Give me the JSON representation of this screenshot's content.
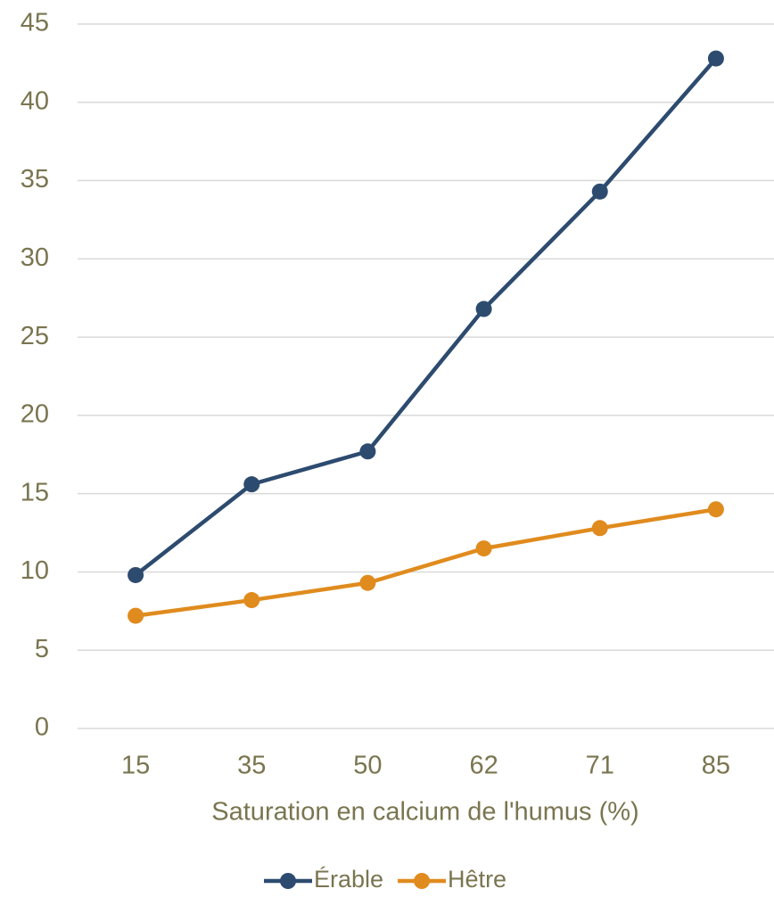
{
  "chart_data": {
    "type": "line",
    "x_label": "Saturation en calcium de l'humus (%)",
    "categories": [
      "15",
      "35",
      "50",
      "62",
      "71",
      "85"
    ],
    "series": [
      {
        "name": "Érable",
        "color": "#2d4b6f",
        "values": [
          9.8,
          15.6,
          17.7,
          26.8,
          34.3,
          42.8
        ]
      },
      {
        "name": "Hêtre",
        "color": "#e08b1e",
        "values": [
          7.2,
          8.2,
          9.3,
          11.5,
          12.8,
          14.0
        ]
      }
    ],
    "ylim": [
      0,
      45
    ],
    "yticks": [
      0,
      5,
      10,
      15,
      20,
      25,
      30,
      35,
      40,
      45
    ],
    "grid": true,
    "legend": "bottom"
  }
}
